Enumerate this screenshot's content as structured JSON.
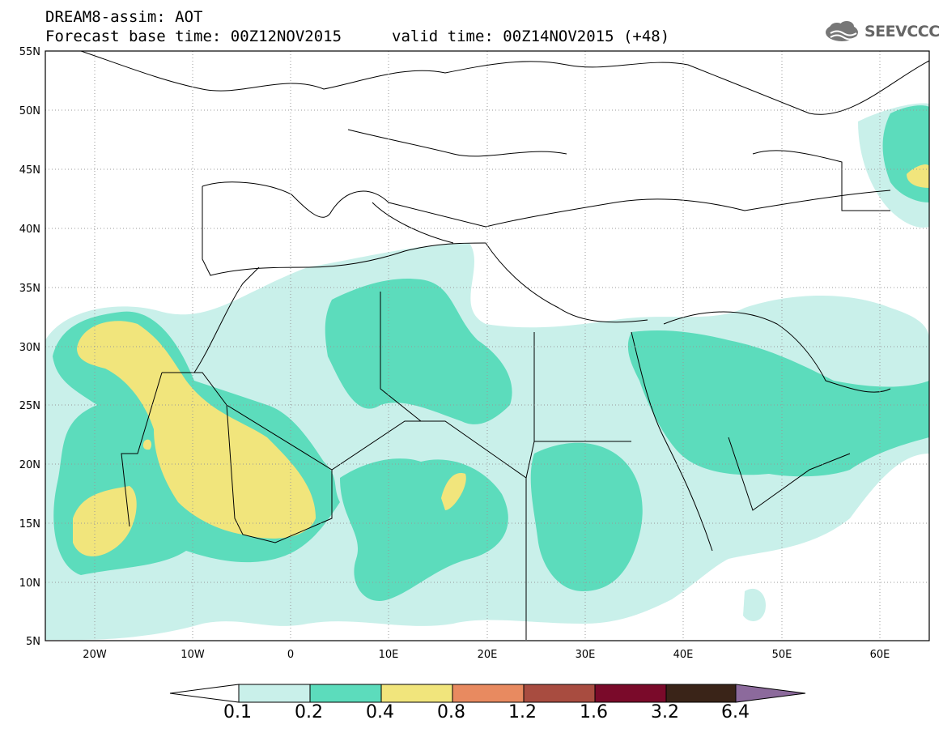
{
  "header": {
    "title_line1": "DREAM8-assim: AOT",
    "title_line2": "Forecast base time: 00Z12NOV2015",
    "title_line2b": "valid time: 00Z14NOV2015 (+48)",
    "logo_text": "SEEVCCC"
  },
  "map": {
    "lat_labels": [
      "55N",
      "50N",
      "45N",
      "40N",
      "35N",
      "30N",
      "25N",
      "20N",
      "15N",
      "10N",
      "5N"
    ],
    "lon_labels": [
      "20W",
      "10W",
      "0",
      "10E",
      "20E",
      "30E",
      "40E",
      "50E",
      "60E"
    ],
    "lat_range": [
      5,
      55
    ],
    "lon_range": [
      -25,
      65
    ],
    "grid": "dotted"
  },
  "colorbar": {
    "ticks": [
      "0.1",
      "0.2",
      "0.4",
      "0.8",
      "1.2",
      "1.6",
      "3.2",
      "6.4"
    ],
    "colors": [
      "#ffffff",
      "#c9f0ea",
      "#5cdcbc",
      "#f1e57c",
      "#e88a60",
      "#a84c40",
      "#7a0a2a",
      "#3a2418",
      "#8c6a9c"
    ]
  }
}
